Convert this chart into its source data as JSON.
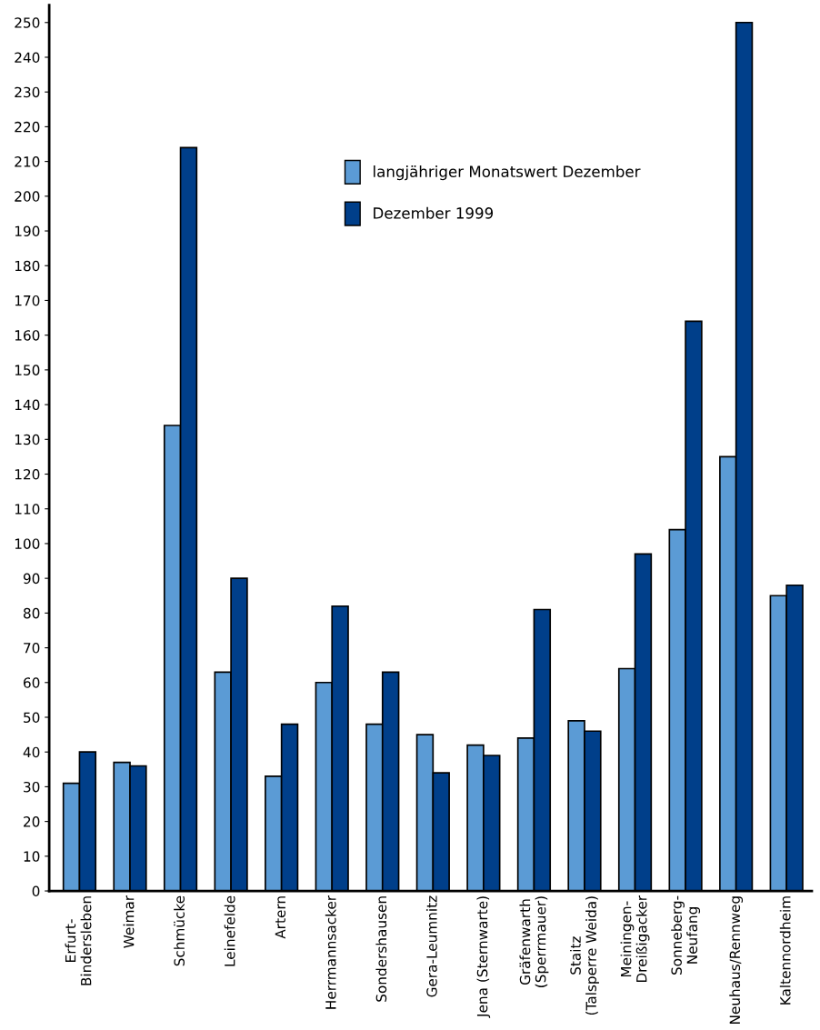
{
  "chart_data": {
    "type": "bar",
    "categories": [
      "Erfurt-\nBindersleben",
      "Weimar",
      "Schmücke",
      "Leinefelde",
      "Artern",
      "Herrmannsacker",
      "Sondershausen",
      "Gera-Leumnitz",
      "Jena (Sternwarte)",
      "Gräfenwarth\n(Sperrmauer)",
      "Staitz\n(Talsperre Weida)",
      "Meiningen-\nDreißigacker",
      "Sonneberg-\nNeufang",
      "Neuhaus/Rennweg",
      "Kaltennordheim"
    ],
    "series": [
      {
        "name": "langjähriger Monatswert Dezember",
        "color": "#5b9bd5",
        "values": [
          31,
          37,
          134,
          63,
          33,
          60,
          48,
          45,
          42,
          44,
          49,
          64,
          104,
          125,
          85
        ]
      },
      {
        "name": "Dezember 1999",
        "color": "#003f8a",
        "values": [
          40,
          36,
          214,
          90,
          48,
          82,
          63,
          34,
          39,
          81,
          46,
          97,
          164,
          250,
          88
        ]
      }
    ],
    "ylim": [
      0,
      255
    ],
    "yticks": [
      0,
      10,
      20,
      30,
      40,
      50,
      60,
      70,
      80,
      90,
      100,
      110,
      120,
      130,
      140,
      150,
      160,
      170,
      180,
      190,
      200,
      210,
      220,
      230,
      240,
      250
    ],
    "grid": false,
    "legend": "top"
  }
}
